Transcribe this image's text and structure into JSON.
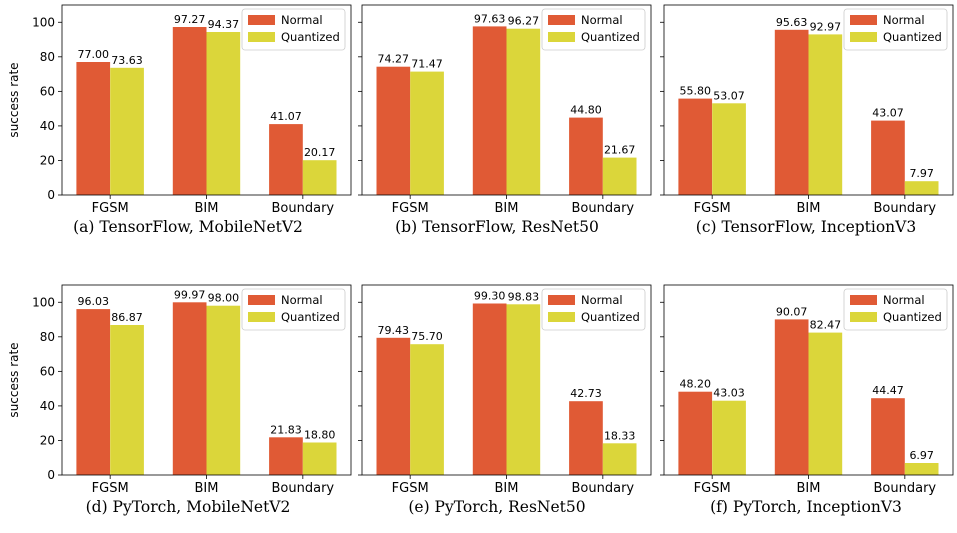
{
  "chart_data": [
    {
      "type": "bar",
      "caption": "(a) TensorFlow, MobileNetV2",
      "ylabel": "success rate",
      "ylim": [
        0,
        110
      ],
      "yticks": [
        0,
        20,
        40,
        60,
        80,
        100
      ],
      "categories": [
        "FGSM",
        "BIM",
        "Boundary"
      ],
      "series": [
        {
          "name": "Normal",
          "values": [
            77.0,
            97.27,
            41.07
          ],
          "labels": [
            "77.00",
            "97.27",
            "41.07"
          ]
        },
        {
          "name": "Quantized",
          "values": [
            73.63,
            94.37,
            20.17
          ],
          "labels": [
            "73.63",
            "94.37",
            "20.17"
          ]
        }
      ],
      "legend": "top-right",
      "grid": false
    },
    {
      "type": "bar",
      "caption": "(b) TensorFlow, ResNet50",
      "ylabel": "",
      "ylim": [
        0,
        110
      ],
      "yticks": [
        0,
        20,
        40,
        60,
        80,
        100
      ],
      "categories": [
        "FGSM",
        "BIM",
        "Boundary"
      ],
      "series": [
        {
          "name": "Normal",
          "values": [
            74.27,
            97.63,
            44.8
          ],
          "labels": [
            "74.27",
            "97.63",
            "44.80"
          ]
        },
        {
          "name": "Quantized",
          "values": [
            71.47,
            96.27,
            21.67
          ],
          "labels": [
            "71.47",
            "96.27",
            "21.67"
          ]
        }
      ],
      "legend": "top-right",
      "grid": false
    },
    {
      "type": "bar",
      "caption": "(c) TensorFlow, InceptionV3",
      "ylabel": "",
      "ylim": [
        0,
        110
      ],
      "yticks": [
        0,
        20,
        40,
        60,
        80,
        100
      ],
      "categories": [
        "FGSM",
        "BIM",
        "Boundary"
      ],
      "series": [
        {
          "name": "Normal",
          "values": [
            55.8,
            95.63,
            43.07
          ],
          "labels": [
            "55.80",
            "95.63",
            "43.07"
          ]
        },
        {
          "name": "Quantized",
          "values": [
            53.07,
            92.97,
            7.97
          ],
          "labels": [
            "53.07",
            "92.97",
            "7.97"
          ]
        }
      ],
      "legend": "top-right",
      "grid": false
    },
    {
      "type": "bar",
      "caption": "(d) PyTorch, MobileNetV2",
      "ylabel": "success rate",
      "ylim": [
        0,
        110
      ],
      "yticks": [
        0,
        20,
        40,
        60,
        80,
        100
      ],
      "categories": [
        "FGSM",
        "BIM",
        "Boundary"
      ],
      "series": [
        {
          "name": "Normal",
          "values": [
            96.03,
            99.97,
            21.83
          ],
          "labels": [
            "96.03",
            "99.97",
            "21.83"
          ]
        },
        {
          "name": "Quantized",
          "values": [
            86.87,
            98.0,
            18.8
          ],
          "labels": [
            "86.87",
            "98.00",
            "18.80"
          ]
        }
      ],
      "legend": "top-right",
      "grid": false
    },
    {
      "type": "bar",
      "caption": "(e) PyTorch, ResNet50",
      "ylabel": "",
      "ylim": [
        0,
        110
      ],
      "yticks": [
        0,
        20,
        40,
        60,
        80,
        100
      ],
      "categories": [
        "FGSM",
        "BIM",
        "Boundary"
      ],
      "series": [
        {
          "name": "Normal",
          "values": [
            79.43,
            99.3,
            42.73
          ],
          "labels": [
            "79.43",
            "99.30",
            "42.73"
          ]
        },
        {
          "name": "Quantized",
          "values": [
            75.7,
            98.83,
            18.33
          ],
          "labels": [
            "75.70",
            "98.83",
            "18.33"
          ]
        }
      ],
      "legend": "top-right",
      "grid": false
    },
    {
      "type": "bar",
      "caption": "(f) PyTorch, InceptionV3",
      "ylabel": "",
      "ylim": [
        0,
        110
      ],
      "yticks": [
        0,
        20,
        40,
        60,
        80,
        100
      ],
      "categories": [
        "FGSM",
        "BIM",
        "Boundary"
      ],
      "series": [
        {
          "name": "Normal",
          "values": [
            48.2,
            90.07,
            44.47
          ],
          "labels": [
            "48.20",
            "90.07",
            "44.47"
          ]
        },
        {
          "name": "Quantized",
          "values": [
            43.03,
            82.47,
            6.97
          ],
          "labels": [
            "43.03",
            "82.47",
            "6.97"
          ]
        }
      ],
      "legend": "top-right",
      "grid": false
    }
  ],
  "colors": {
    "normal": "#e05a35",
    "quantized": "#dbd63a",
    "axis": "#000000"
  }
}
